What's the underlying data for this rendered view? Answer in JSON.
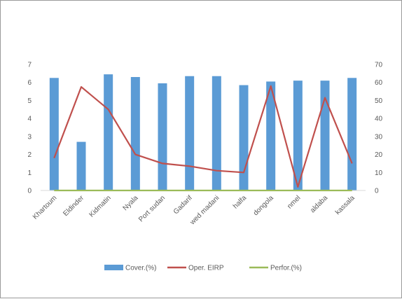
{
  "chart_data": {
    "type": "bar",
    "title": "",
    "categories": [
      "Khartoum",
      "Eldinder",
      "Kidmatin",
      "Nyala",
      "Port sudan",
      "Gadarif",
      "wed madani",
      "halfa",
      "dongola",
      "nmel",
      "aldaba",
      "kassala"
    ],
    "series": [
      {
        "name": "Cover.(%)",
        "type": "bar",
        "axis": "left",
        "color": "#5b9bd5",
        "values": [
          6.25,
          2.7,
          6.45,
          6.3,
          5.95,
          6.35,
          6.35,
          5.85,
          6.05,
          6.1,
          6.1,
          6.25
        ]
      },
      {
        "name": "Oper. EIRP",
        "type": "line",
        "axis": "right",
        "color": "#c0504d",
        "values": [
          18,
          57.5,
          45,
          20,
          15,
          13.5,
          11,
          10,
          58,
          2,
          51.5,
          15
        ]
      },
      {
        "name": "Perfor.(%)",
        "type": "line",
        "axis": "left",
        "color": "#9bbb59",
        "values": [
          0,
          0,
          0,
          0,
          0,
          0,
          0,
          0,
          0,
          0,
          0,
          0
        ]
      }
    ],
    "y_left": {
      "min": 0,
      "max": 7,
      "ticks": [
        0,
        1,
        2,
        3,
        4,
        5,
        6,
        7
      ]
    },
    "y_right": {
      "min": 0,
      "max": 70,
      "ticks": [
        0,
        10,
        20,
        30,
        40,
        50,
        60,
        70
      ]
    },
    "grid": false,
    "legend_position": "bottom"
  }
}
